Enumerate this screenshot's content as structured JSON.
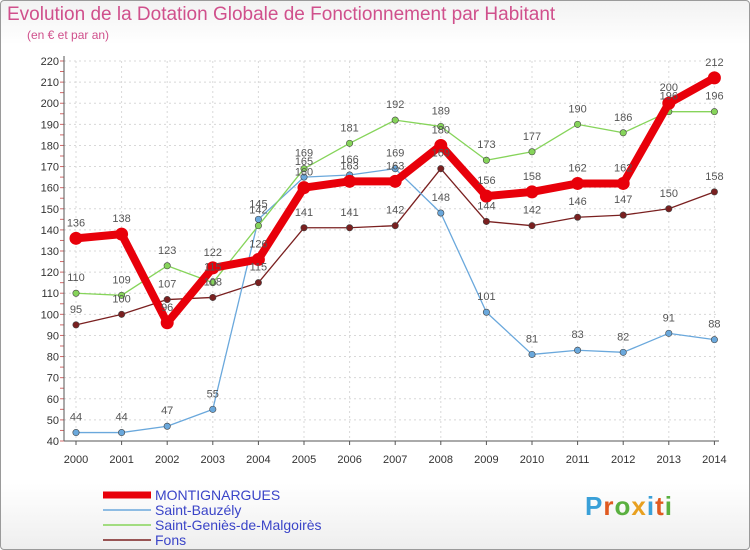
{
  "header": {
    "title": "Evolution de la Dotation Globale de Fonctionnement par Habitant",
    "subtitle": "(en € et par an)"
  },
  "logo": {
    "letters": [
      "P",
      "r",
      "o",
      "x",
      "i",
      "t",
      "i"
    ],
    "colors": [
      "#3aa0d8",
      "#e05a20",
      "#5ab040",
      "#e8a020",
      "#3aa0d8",
      "#e05a20",
      "#5ab040"
    ]
  },
  "chart_data": {
    "type": "line",
    "title": "Evolution de la Dotation Globale de Fonctionnement par Habitant",
    "subtitle": "(en € et par an)",
    "x": [
      "2000",
      "2001",
      "2002",
      "2003",
      "2004",
      "2005",
      "2006",
      "2007",
      "2008",
      "2009",
      "2010",
      "2011",
      "2012",
      "2013",
      "2014"
    ],
    "ylim": [
      40,
      220
    ],
    "yticks": [
      40,
      50,
      60,
      70,
      80,
      90,
      100,
      110,
      120,
      130,
      140,
      150,
      160,
      170,
      180,
      190,
      200,
      210,
      220
    ],
    "grid": true,
    "legend_placement": "bottom-left",
    "series": [
      {
        "name": "MONTIGNARGUES",
        "color": "#e8000a",
        "values": [
          136,
          138,
          96,
          122,
          126,
          160,
          163,
          163,
          180,
          156,
          158,
          162,
          162,
          200,
          212
        ]
      },
      {
        "name": "Saint-Bauzély",
        "color": "#6aa8dc",
        "values": [
          44,
          44,
          47,
          55,
          145,
          165,
          166,
          169,
          148,
          101,
          81,
          83,
          82,
          91,
          88
        ]
      },
      {
        "name": "Saint-Geniès-de-Malgoirès",
        "color": "#86d45a",
        "values": [
          110,
          109,
          123,
          115,
          142,
          169,
          181,
          192,
          189,
          173,
          177,
          190,
          186,
          196,
          196
        ]
      },
      {
        "name": "Fons",
        "color": "#7a2020",
        "values": [
          95,
          100,
          107,
          108,
          115,
          141,
          141,
          142,
          169,
          144,
          142,
          146,
          147,
          150,
          158
        ]
      }
    ]
  }
}
